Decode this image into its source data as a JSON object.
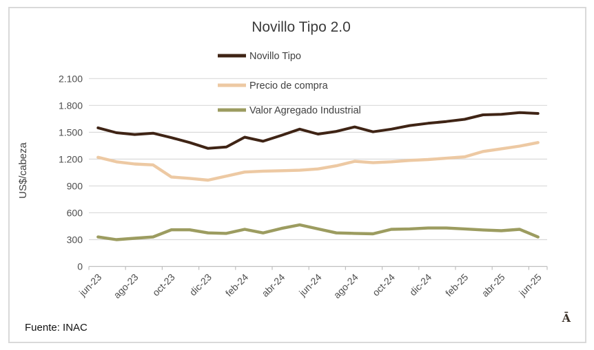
{
  "title": "Novillo Tipo 2.0",
  "source": "Fuente: INAC",
  "watermark": "Ā",
  "colors": {
    "novillo_tipo": "#3F2415",
    "precio_de_compra": "#EDC9A3",
    "valor_agregado_industrial": "#9C9C60",
    "gridline": "#D9D9D9",
    "axis": "#BFBFBF",
    "title_text": "#3a3a3a",
    "tick_text": "#4d4d4d"
  },
  "chart_data": {
    "type": "line",
    "title": "Novillo Tipo 2.0",
    "xlabel": "",
    "ylabel": "US$/cabeza",
    "ylim": [
      0,
      2100
    ],
    "ytick_step": 300,
    "ytick_values": [
      0,
      300,
      600,
      900,
      1200,
      1500,
      1800,
      2100
    ],
    "ytick_labels": [
      "0",
      "300",
      "600",
      "900",
      "1.200",
      "1.500",
      "1.800",
      "2.100"
    ],
    "grid": true,
    "legend_position": "top-center",
    "x": [
      "jun-23",
      "jul-23",
      "ago-23",
      "sep-23",
      "oct-23",
      "nov-23",
      "dic-23",
      "ene-24",
      "feb-24",
      "mar-24",
      "abr-24",
      "may-24",
      "jun-24",
      "jul-24",
      "ago-24",
      "sep-24",
      "oct-24",
      "nov-24",
      "dic-24",
      "ene-25",
      "feb-25",
      "mar-25",
      "abr-25",
      "may-25",
      "jun-25"
    ],
    "xtick_labels_shown": [
      "jun-23",
      "ago-23",
      "oct-23",
      "dic-23",
      "feb-24",
      "abr-24",
      "jun-24",
      "ago-24",
      "oct-24",
      "dic-24",
      "feb-25",
      "abr-25",
      "jun-25"
    ],
    "series": [
      {
        "name": "Novillo Tipo",
        "color": "#3F2415",
        "values": [
          1550,
          1495,
          1475,
          1490,
          1440,
          1385,
          1320,
          1335,
          1445,
          1400,
          1465,
          1535,
          1480,
          1510,
          1560,
          1505,
          1535,
          1575,
          1600,
          1620,
          1645,
          1695,
          1700,
          1720,
          1710
        ]
      },
      {
        "name": "Precio de compra",
        "color": "#EDC9A3",
        "values": [
          1220,
          1170,
          1145,
          1135,
          1000,
          985,
          965,
          1010,
          1055,
          1065,
          1070,
          1075,
          1090,
          1125,
          1175,
          1160,
          1170,
          1185,
          1195,
          1210,
          1225,
          1285,
          1315,
          1345,
          1385
        ]
      },
      {
        "name": "Valor Agregado Industrial",
        "color": "#9C9C60",
        "values": [
          330,
          300,
          315,
          330,
          410,
          410,
          375,
          370,
          415,
          375,
          425,
          465,
          420,
          375,
          370,
          365,
          415,
          420,
          430,
          430,
          420,
          408,
          400,
          415,
          330
        ]
      }
    ]
  }
}
